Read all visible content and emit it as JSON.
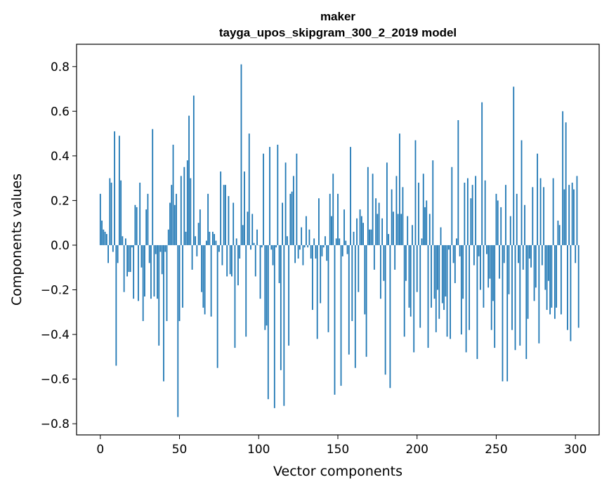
{
  "chart_data": {
    "type": "bar",
    "title": "maker",
    "subtitle": "tayga_upos_skipgram_300_2_2019 model",
    "xlabel": "Vector components",
    "ylabel": "Components values",
    "xlim": [
      -15,
      315
    ],
    "ylim": [
      -0.85,
      0.9
    ],
    "x_ticks": [
      0,
      50,
      100,
      150,
      200,
      250,
      300
    ],
    "x_tick_labels": [
      "0",
      "50",
      "100",
      "150",
      "200",
      "250",
      "300"
    ],
    "y_ticks": [
      0.8,
      0.6,
      0.4,
      0.2,
      0.0,
      -0.2,
      -0.4,
      -0.6,
      -0.8
    ],
    "y_tick_labels": [
      "0.8",
      "0.6",
      "0.4",
      "0.2",
      "0.0",
      "−0.2",
      "−0.4",
      "−0.6",
      "−0.8"
    ],
    "grid": false,
    "bar_color": "#1f77b4",
    "values": [
      0.23,
      0.11,
      0.07,
      0.06,
      0.05,
      -0.08,
      0.3,
      0.28,
      -0.03,
      0.51,
      -0.54,
      -0.08,
      0.49,
      0.29,
      0.04,
      -0.21,
      0.03,
      -0.14,
      -0.12,
      -0.12,
      -0.01,
      -0.24,
      0.18,
      0.17,
      -0.25,
      0.28,
      -0.1,
      -0.34,
      -0.23,
      0.16,
      0.23,
      -0.08,
      -0.24,
      0.52,
      -0.23,
      -0.04,
      -0.24,
      -0.45,
      -0.03,
      -0.13,
      -0.61,
      -0.03,
      -0.34,
      0.07,
      0.19,
      0.27,
      0.45,
      0.18,
      0.23,
      -0.77,
      -0.34,
      0.31,
      -0.28,
      0.35,
      0.06,
      0.38,
      0.58,
      0.3,
      -0.11,
      0.67,
      0.04,
      -0.05,
      0.1,
      0.16,
      -0.21,
      -0.28,
      -0.31,
      0.02,
      0.23,
      0.06,
      -0.32,
      0.06,
      0.05,
      0.02,
      -0.55,
      -0.03,
      0.33,
      -0.09,
      0.27,
      0.27,
      -0.14,
      0.22,
      -0.13,
      -0.14,
      0.19,
      -0.46,
      0.03,
      -0.18,
      -0.06,
      0.81,
      0.09,
      0.33,
      -0.41,
      0.15,
      0.5,
      -0.02,
      0.14,
      0.01,
      -0.14,
      0.07,
      0.0,
      -0.24,
      -0.01,
      0.41,
      -0.38,
      -0.36,
      -0.69,
      0.44,
      -0.02,
      -0.09,
      -0.73,
      -0.01,
      0.45,
      -0.17,
      -0.56,
      0.19,
      -0.72,
      0.37,
      0.04,
      -0.45,
      0.23,
      0.24,
      0.31,
      -0.08,
      0.41,
      -0.06,
      -0.02,
      0.08,
      -0.09,
      -0.01,
      0.13,
      -0.01,
      0.07,
      -0.06,
      -0.29,
      0.03,
      -0.06,
      -0.42,
      0.21,
      -0.26,
      -0.05,
      -0.01,
      0.04,
      -0.07,
      -0.39,
      0.23,
      0.13,
      0.32,
      -0.67,
      0.03,
      0.23,
      0.03,
      -0.63,
      -0.05,
      0.16,
      0.02,
      -0.04,
      -0.49,
      0.44,
      -0.34,
      0.06,
      -0.55,
      0.12,
      -0.21,
      0.16,
      0.13,
      0.1,
      -0.31,
      -0.5,
      0.35,
      0.07,
      0.07,
      0.32,
      -0.11,
      0.21,
      0.14,
      0.19,
      -0.24,
      0.12,
      -0.16,
      -0.58,
      0.37,
      0.05,
      -0.64,
      0.25,
      0.15,
      -0.11,
      0.31,
      0.14,
      0.5,
      0.14,
      0.26,
      -0.41,
      -0.16,
      0.13,
      -0.28,
      -0.32,
      0.09,
      -0.48,
      0.47,
      -0.21,
      0.28,
      -0.37,
      0.03,
      0.32,
      0.17,
      0.2,
      -0.46,
      0.14,
      -0.28,
      0.38,
      -0.24,
      -0.39,
      -0.2,
      -0.33,
      0.08,
      -0.26,
      -0.29,
      -0.23,
      -0.41,
      -0.02,
      -0.42,
      0.35,
      -0.08,
      -0.17,
      0.03,
      0.56,
      -0.05,
      -0.4,
      -0.24,
      0.28,
      -0.48,
      0.3,
      -0.38,
      0.21,
      0.27,
      -0.09,
      0.31,
      -0.51,
      -0.05,
      -0.2,
      0.64,
      -0.28,
      0.29,
      -0.04,
      -0.19,
      -0.15,
      -0.38,
      -0.25,
      -0.46,
      0.23,
      0.2,
      -0.15,
      0.17,
      -0.61,
      -0.08,
      0.27,
      -0.61,
      -0.22,
      0.13,
      -0.38,
      0.71,
      -0.47,
      0.23,
      -0.08,
      -0.45,
      0.47,
      -0.11,
      0.18,
      -0.51,
      -0.33,
      -0.06,
      -0.1,
      0.26,
      -0.25,
      -0.19,
      0.41,
      -0.44,
      0.3,
      -0.09,
      0.26,
      -0.2,
      -0.29,
      -0.16,
      -0.31,
      -0.28,
      0.3,
      -0.33,
      -0.28,
      0.11,
      0.09,
      -0.31,
      0.6,
      0.25,
      0.55,
      -0.38,
      0.27,
      -0.43,
      0.28,
      0.25,
      -0.08,
      0.31,
      -0.37
    ]
  }
}
